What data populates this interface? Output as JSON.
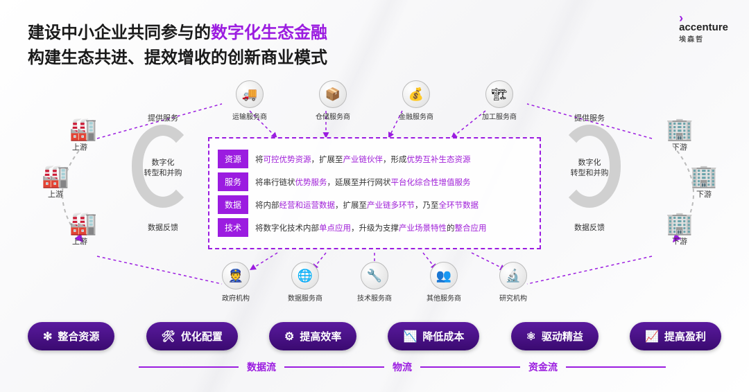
{
  "logo": {
    "brand": "accenture",
    "cn": "埃森哲"
  },
  "title": {
    "line1_a": "建设中小企业共同参与的",
    "line1_b": "数字化生态金融",
    "line2": "构建生态共进、提效增收的创新商业模式"
  },
  "colors": {
    "accent": "#9b1ce0",
    "pill_grad_top": "#5a1a9e",
    "pill_grad_bot": "#3a0a70"
  },
  "left_nodes": [
    {
      "label": "上游",
      "glyph": "🏭"
    },
    {
      "label": "上游",
      "glyph": "🏭"
    },
    {
      "label": "上游",
      "glyph": "🏭"
    }
  ],
  "right_nodes": [
    {
      "label": "下游",
      "glyph": "🏢"
    },
    {
      "label": "下游",
      "glyph": "🏢"
    },
    {
      "label": "下游",
      "glyph": "🏢"
    }
  ],
  "cycle_left": {
    "top": "提供服务",
    "mid": "数字化\n转型和并购",
    "bot": "数据反馈"
  },
  "cycle_right": {
    "top": "提供服务",
    "mid": "数字化\n转型和并购",
    "bot": "数据反馈"
  },
  "top_providers": [
    {
      "label": "运输服务商",
      "emoji": "🚚"
    },
    {
      "label": "仓储服务商",
      "emoji": "📦"
    },
    {
      "label": "金融服务商",
      "emoji": "💰"
    },
    {
      "label": "加工服务商",
      "emoji": "🏗"
    }
  ],
  "bot_providers": [
    {
      "label": "政府机构",
      "emoji": "👮"
    },
    {
      "label": "数据服务商",
      "emoji": "🌐"
    },
    {
      "label": "技术服务商",
      "emoji": "🔧"
    },
    {
      "label": "其他服务商",
      "emoji": "👥"
    },
    {
      "label": "研究机构",
      "emoji": "🔬"
    }
  ],
  "center": [
    {
      "tag": "资源",
      "parts": [
        "将",
        "可控优势资源",
        "，扩展至",
        "产业链伙伴",
        "，形成",
        "优势互补生态资源"
      ]
    },
    {
      "tag": "服务",
      "parts": [
        "将串行链状",
        "优势服务",
        "，延展至并行网状",
        "平台化综合性增值服务"
      ]
    },
    {
      "tag": "数据",
      "parts": [
        "将内部",
        "经营和运营数据",
        "，扩展至",
        "产业链多环节",
        "，乃至",
        "全环节数据"
      ]
    },
    {
      "tag": "技术",
      "parts": [
        "将数字化技术内部",
        "单点应用",
        "，升级为支撑",
        "产业场景特性",
        "的",
        "整合应用"
      ]
    }
  ],
  "pills": [
    {
      "icon": "✻",
      "label": "整合资源"
    },
    {
      "icon": "🛠",
      "label": "优化配置"
    },
    {
      "icon": "⚙",
      "label": "提高效率"
    },
    {
      "icon": "📉",
      "label": "降低成本"
    },
    {
      "icon": "⚛",
      "label": "驱动精益"
    },
    {
      "icon": "📈",
      "label": "提高盈利"
    }
  ],
  "flows": [
    "数据流",
    "物流",
    "资金流"
  ]
}
